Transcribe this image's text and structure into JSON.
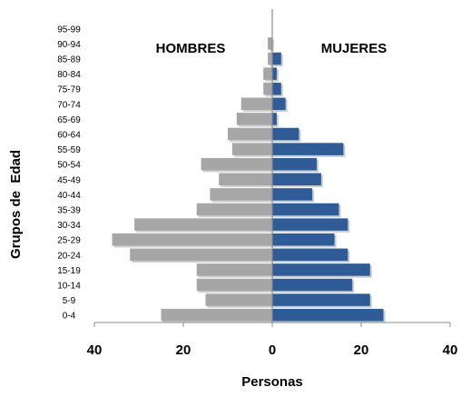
{
  "chart_data": {
    "type": "bar",
    "orientation": "horizontal",
    "variant": "population-pyramid",
    "title": "",
    "xlabel": "Personas",
    "ylabel": "Grupos de  Edad",
    "xlim": [
      -40,
      40
    ],
    "x_ticks": [
      -40,
      -20,
      0,
      20,
      40
    ],
    "x_tick_labels": [
      "40",
      "20",
      "0",
      "20",
      "40"
    ],
    "grid": false,
    "legend": "none",
    "categories": [
      "0-4",
      "5-9",
      "10-14",
      "15-19",
      "20-24",
      "25-29",
      "30-34",
      "35-39",
      "40-44",
      "45-49",
      "50-54",
      "55-59",
      "60-64",
      "65-69",
      "70-74",
      "75-79",
      "80-84",
      "85-89",
      "90-94",
      "95-99"
    ],
    "series": [
      {
        "name": "HOMBRES",
        "side": "left",
        "color": "#a6a6a6",
        "values": [
          25,
          15,
          17,
          17,
          32,
          36,
          31,
          17,
          14,
          12,
          16,
          9,
          10,
          8,
          7,
          2,
          2,
          1,
          1,
          0
        ]
      },
      {
        "name": "MUJERES",
        "side": "right",
        "color": "#2f5c96",
        "values": [
          25,
          22,
          18,
          22,
          17,
          14,
          17,
          15,
          9,
          11,
          10,
          16,
          6,
          1,
          3,
          2,
          1,
          2,
          0,
          0
        ]
      }
    ]
  }
}
